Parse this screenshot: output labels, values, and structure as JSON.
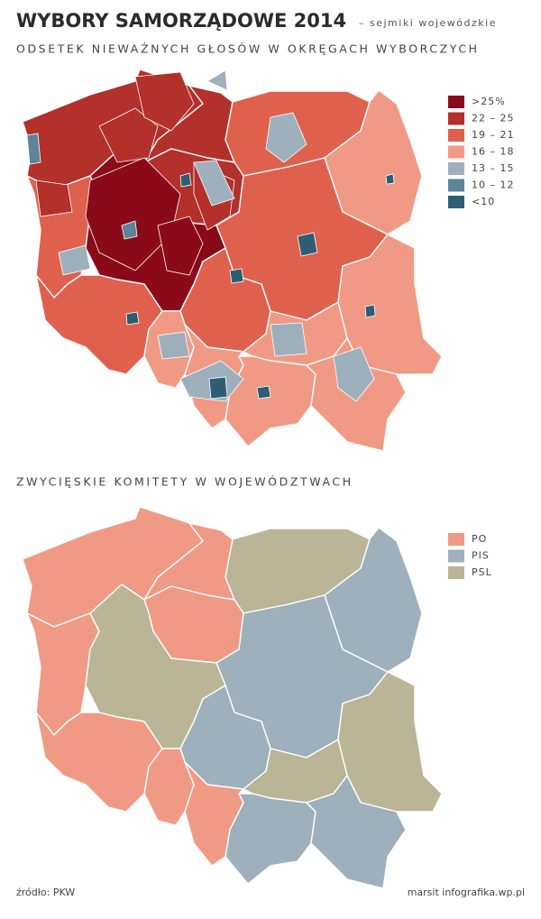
{
  "header": {
    "title": "WYBORY SAMORZĄDOWE 2014",
    "subtitle": "– sejmiki wojewódzkie",
    "heading": "ODSETEK NIEWAŻNYCH GŁOSÓW W OKRĘGACH WYBORCZYCH"
  },
  "map1": {
    "legend": [
      {
        "label": ">25%",
        "color": "#8b0a1a"
      },
      {
        "label": "22 – 25",
        "color": "#b3302b"
      },
      {
        "label": "19 – 21",
        "color": "#e0604e"
      },
      {
        "label": "16 – 18",
        "color": "#f09a85"
      },
      {
        "label": "13 – 15",
        "color": "#9fb0bd"
      },
      {
        "label": "10 – 12",
        "color": "#5d8499"
      },
      {
        "label": "<10",
        "color": "#2f5d73"
      }
    ]
  },
  "map2": {
    "heading": "ZWYCIĘSKIE KOMITETY W WOJEWÓDZTWACH",
    "legend": [
      {
        "label": "PO",
        "color": "#f09a85"
      },
      {
        "label": "PIS",
        "color": "#9fb0bd"
      },
      {
        "label": "PSL",
        "color": "#bab597"
      }
    ]
  },
  "footer": {
    "source": "źródło: PKW",
    "credit": "marsit infografika.wp.pl"
  }
}
